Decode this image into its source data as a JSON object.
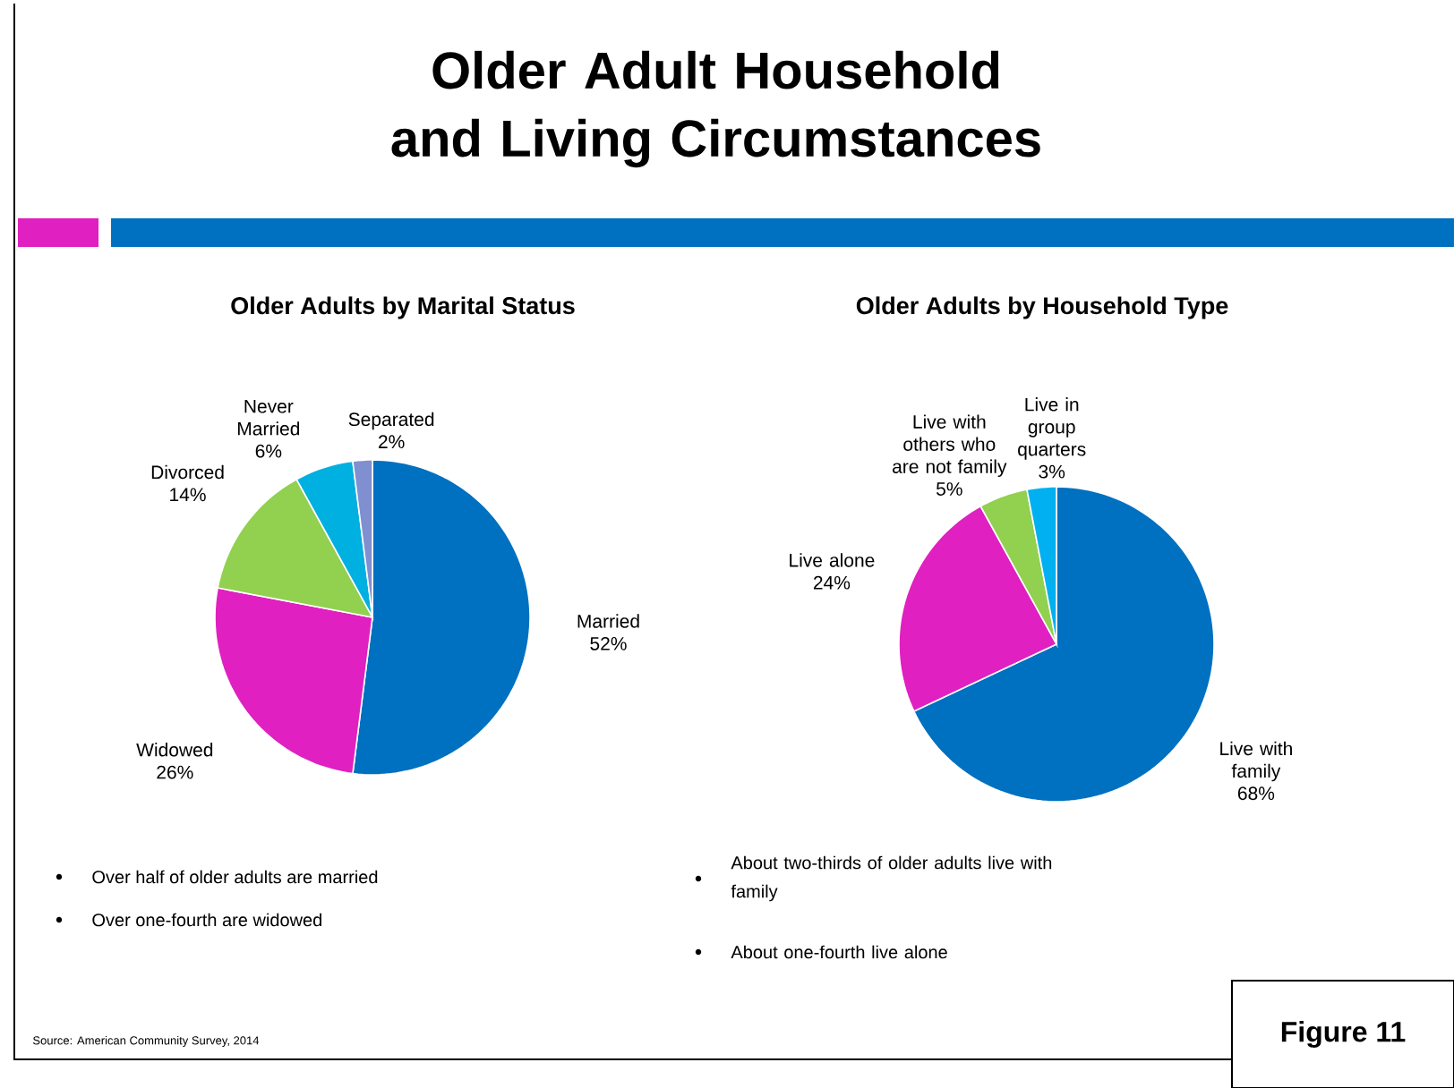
{
  "chart_data": [
    {
      "type": "pie",
      "title": "Older Adults by Marital Status",
      "categories": [
        "Married",
        "Widowed",
        "Divorced",
        "Never Married",
        "Separated"
      ],
      "values": [
        52,
        26,
        14,
        6,
        2
      ],
      "value_labels": [
        "52%",
        "26%",
        "14%",
        "6%",
        "2%"
      ],
      "colors": [
        "#0070c0",
        "#e020c0",
        "#92d050",
        "#00b0e0",
        "#7f8fd0"
      ],
      "annotations": [
        "Older Adult Household and Living Circumstances",
        "Over half of older adults are married",
        "Over one-fourth are widowed",
        "Source:  American Community Survey, 2014",
        "Figure 11"
      ]
    },
    {
      "type": "pie",
      "title": "Older Adults by Household Type",
      "categories": [
        "Live with family",
        "Live alone",
        "Live with others who are not family",
        "Live in group quarters"
      ],
      "values": [
        68,
        24,
        5,
        3
      ],
      "value_labels": [
        "68%",
        "24%",
        "5%",
        "3%"
      ],
      "colors": [
        "#0070c0",
        "#e020c0",
        "#92d050",
        "#00b0f0"
      ],
      "annotations": [
        "About two-thirds of older adults live with family",
        "About one-fourth live alone"
      ]
    }
  ]
}
